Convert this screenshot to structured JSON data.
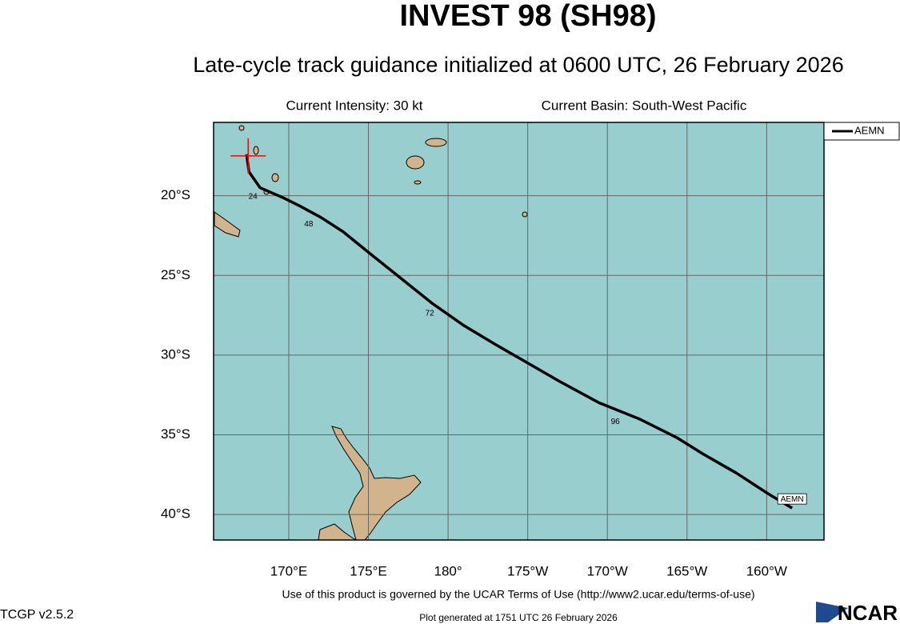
{
  "chart_data": {
    "type": "map-track",
    "title": "INVEST 98 (SH98)",
    "subtitle": "Late-cycle track guidance initialized at 0600 UTC, 26 February 2026",
    "intensity": "Current Intensity: 30 kt",
    "basin": "Current Basin: South-West Pacific",
    "x": [
      167.35,
      167.5,
      168.2,
      169.7,
      170.7,
      172.0,
      173.4,
      175.0,
      177.0,
      179.0,
      181.0,
      183.0,
      184.75,
      187.0,
      189.5,
      192.0,
      194.4,
      196.0,
      198.1,
      200.1,
      201.6
    ],
    "series": [
      {
        "name": "AEMN",
        "color": "#000000",
        "values": [
          -17.4,
          -18.5,
          -19.5,
          -20.15,
          -20.65,
          -21.35,
          -22.25,
          -23.55,
          -25.15,
          -26.75,
          -28.15,
          -29.35,
          -30.35,
          -31.65,
          -33.0,
          -34.0,
          -35.2,
          -36.2,
          -37.4,
          -38.7,
          -39.6
        ]
      }
    ],
    "hour_labels": [
      {
        "text": "24",
        "lon": 167.75,
        "lat": -20.05
      },
      {
        "text": "48",
        "lon": 171.25,
        "lat": -21.8
      },
      {
        "text": "72",
        "lon": 178.85,
        "lat": -27.4
      },
      {
        "text": "96",
        "lon": 190.5,
        "lat": -34.2
      }
    ],
    "current_position": {
      "lon": 167.45,
      "lat": -17.5,
      "color": "#ff0000"
    },
    "xlim": [
      165.28,
      203.6
    ],
    "ylim": [
      -41.6,
      -15.4
    ],
    "xticks": [
      {
        "value": 170,
        "label": "170°E"
      },
      {
        "value": 175,
        "label": "175°E"
      },
      {
        "value": 180,
        "label": "180°"
      },
      {
        "value": 185,
        "label": "175°W"
      },
      {
        "value": 190,
        "label": "170°W"
      },
      {
        "value": 195,
        "label": "165°W"
      },
      {
        "value": 200,
        "label": "160°W"
      }
    ],
    "yticks": [
      {
        "value": -20,
        "label": "20°S"
      },
      {
        "value": -25,
        "label": "25°S"
      },
      {
        "value": -30,
        "label": "30°S"
      },
      {
        "value": -35,
        "label": "35°S"
      },
      {
        "value": -40,
        "label": "40°S"
      }
    ],
    "grid": true,
    "legend": "upper right"
  },
  "footer": {
    "terms": "Use of this product is governed by the UCAR Terms of Use (http://www2.ucar.edu/terms-of-use)",
    "version": "TCGP v2.5.2",
    "generated": "Plot generated at 1751 UTC   26 February 2026",
    "logo": "NCAR"
  }
}
